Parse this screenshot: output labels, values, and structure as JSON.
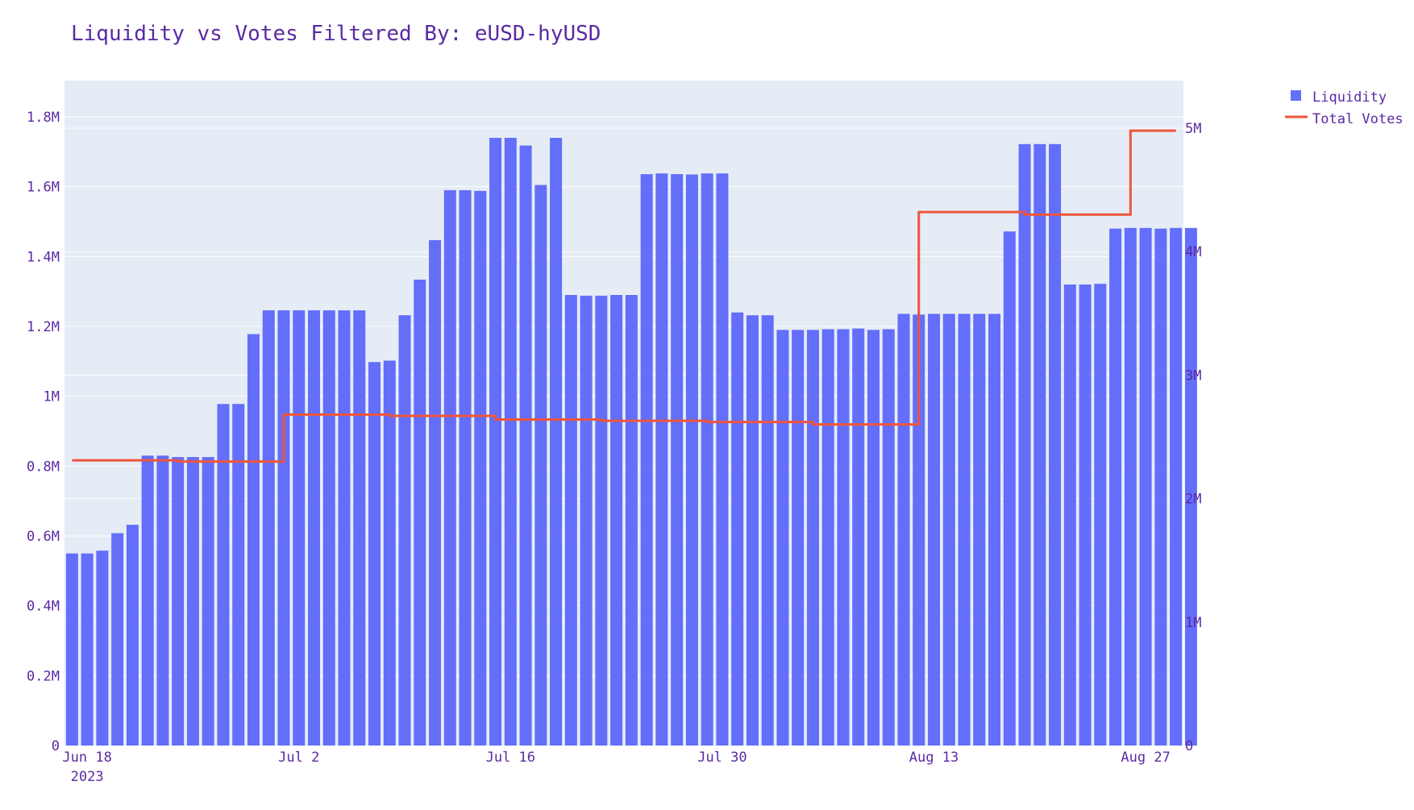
{
  "chart_data": {
    "type": "bar",
    "title": "Liquidity vs Votes Filtered By: eUSD-hyUSD",
    "xlabel": "",
    "ylabel": "",
    "ylabel_right": "",
    "legend_position": "top-right",
    "grid": true,
    "colors": {
      "text": "#5b2aa3",
      "plot_bg": "#e5ecf6",
      "grid": "#ffffff",
      "bar": "#636efa",
      "line": "#ef553b"
    },
    "x_start": "2023-06-17",
    "x_end": "2023-08-29",
    "x_ticks": [
      {
        "date": "2023-06-18",
        "label": "Jun 18",
        "sublabel": "2023"
      },
      {
        "date": "2023-07-02",
        "label": "Jul 2",
        "sublabel": ""
      },
      {
        "date": "2023-07-16",
        "label": "Jul 16",
        "sublabel": ""
      },
      {
        "date": "2023-07-30",
        "label": "Jul 30",
        "sublabel": ""
      },
      {
        "date": "2023-08-13",
        "label": "Aug 13",
        "sublabel": ""
      },
      {
        "date": "2023-08-27",
        "label": "Aug 27",
        "sublabel": ""
      }
    ],
    "y_left": {
      "range": [
        0,
        1800000
      ],
      "ticks": [
        0,
        200000,
        400000,
        600000,
        800000,
        1000000,
        1200000,
        1400000,
        1600000,
        1800000
      ],
      "tick_labels": [
        "0",
        "0.2M",
        "0.4M",
        "0.6M",
        "0.8M",
        "1M",
        "1.2M",
        "1.4M",
        "1.6M",
        "1.8M"
      ]
    },
    "y_right": {
      "range": [
        0,
        5000000
      ],
      "ticks": [
        0,
        1000000,
        2000000,
        3000000,
        4000000,
        5000000
      ],
      "tick_labels": [
        "0",
        "1M",
        "2M",
        "3M",
        "4M",
        "5M"
      ]
    },
    "series": [
      {
        "name": "Liquidity",
        "type": "bar",
        "axis": "left",
        "start_date": "2023-06-17",
        "values": [
          550000,
          550000,
          558000,
          608000,
          632000,
          830000,
          830000,
          826000,
          826000,
          826000,
          978000,
          978000,
          1178000,
          1246000,
          1246000,
          1246000,
          1246000,
          1246000,
          1246000,
          1246000,
          1098000,
          1102000,
          1232000,
          1334000,
          1447000,
          1590000,
          1590000,
          1588000,
          1740000,
          1740000,
          1718000,
          1605000,
          1740000,
          1290000,
          1288000,
          1288000,
          1290000,
          1290000,
          1636000,
          1638000,
          1636000,
          1635000,
          1638000,
          1638000,
          1240000,
          1232000,
          1232000,
          1190000,
          1190000,
          1190000,
          1192000,
          1192000,
          1194000,
          1190000,
          1192000,
          1236000,
          1234000,
          1236000,
          1236000,
          1236000,
          1236000,
          1236000,
          1472000,
          1722000,
          1722000,
          1722000,
          1320000,
          1320000,
          1322000,
          1480000,
          1482000,
          1482000,
          1480000,
          1482000,
          1482000
        ]
      },
      {
        "name": "Total Votes",
        "type": "line",
        "line_shape": "hv",
        "axis": "right",
        "points": [
          {
            "x": "2023-06-17",
            "y": 2310000
          },
          {
            "x": "2023-06-24",
            "y": 2300000
          },
          {
            "x": "2023-07-01",
            "y": 2680000
          },
          {
            "x": "2023-07-08",
            "y": 2670000
          },
          {
            "x": "2023-07-15",
            "y": 2640000
          },
          {
            "x": "2023-07-22",
            "y": 2630000
          },
          {
            "x": "2023-07-29",
            "y": 2620000
          },
          {
            "x": "2023-08-05",
            "y": 2600000
          },
          {
            "x": "2023-08-12",
            "y": 4320000
          },
          {
            "x": "2023-08-19",
            "y": 4300000
          },
          {
            "x": "2023-08-26",
            "y": 4980000
          },
          {
            "x": "2023-08-29",
            "y": 4980000
          }
        ]
      }
    ]
  }
}
